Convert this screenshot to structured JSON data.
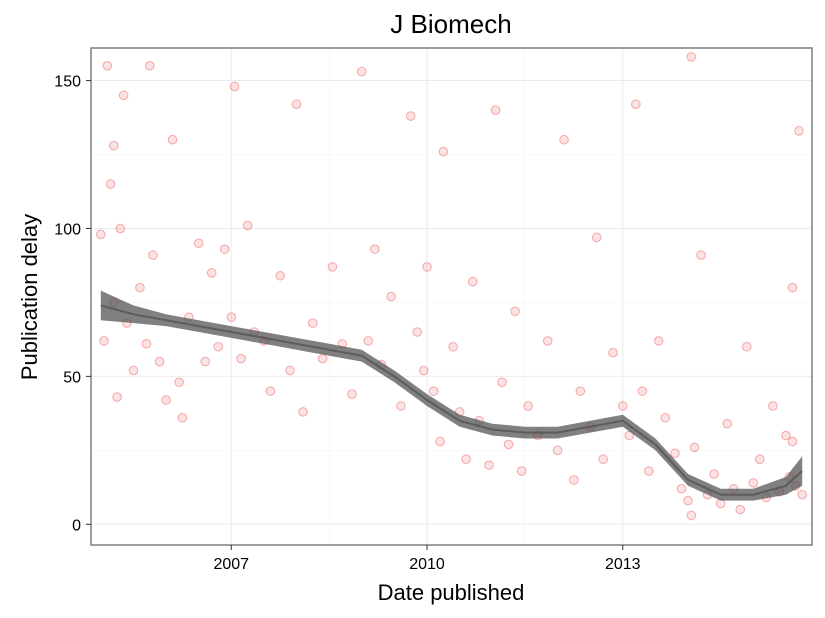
{
  "chart_data": {
    "type": "scatter",
    "title": "J Biomech",
    "xlabel": "Date published",
    "ylabel": "Publication delay",
    "xlim": [
      2004.85,
      2015.9
    ],
    "ylim": [
      -7,
      161
    ],
    "x_ticks": [
      2007,
      2010,
      2013
    ],
    "x_tick_labels": [
      "2007",
      "2010",
      "2013"
    ],
    "y_ticks": [
      0,
      50,
      100,
      150
    ],
    "y_tick_labels": [
      "0",
      "50",
      "100",
      "150"
    ],
    "grid": true,
    "legend": "none",
    "point_color": "#e41a1c",
    "point_opacity": 0.12,
    "smooth_color": "#555555",
    "series": [
      {
        "values": [
          [
            2005.0,
            98
          ],
          [
            2005.05,
            62
          ],
          [
            2005.1,
            155
          ],
          [
            2005.15,
            115
          ],
          [
            2005.2,
            75
          ],
          [
            2005.25,
            43
          ],
          [
            2005.3,
            100
          ],
          [
            2005.4,
            68
          ],
          [
            2005.5,
            52
          ],
          [
            2005.6,
            80
          ],
          [
            2005.7,
            61
          ],
          [
            2005.75,
            155
          ],
          [
            2005.8,
            91
          ],
          [
            2005.9,
            55
          ],
          [
            2006.0,
            42
          ],
          [
            2006.1,
            130
          ],
          [
            2006.2,
            48
          ],
          [
            2006.25,
            36
          ],
          [
            2006.35,
            70
          ],
          [
            2006.5,
            95
          ],
          [
            2006.6,
            55
          ],
          [
            2006.7,
            85
          ],
          [
            2006.8,
            60
          ],
          [
            2006.9,
            93
          ],
          [
            2007.0,
            70
          ],
          [
            2007.05,
            148
          ],
          [
            2007.15,
            56
          ],
          [
            2007.25,
            101
          ],
          [
            2007.35,
            65
          ],
          [
            2007.5,
            62
          ],
          [
            2007.6,
            45
          ],
          [
            2007.75,
            84
          ],
          [
            2007.9,
            52
          ],
          [
            2008.0,
            142
          ],
          [
            2008.1,
            38
          ],
          [
            2008.25,
            68
          ],
          [
            2008.4,
            56
          ],
          [
            2008.55,
            87
          ],
          [
            2008.7,
            61
          ],
          [
            2008.85,
            44
          ],
          [
            2009.0,
            153
          ],
          [
            2009.1,
            62
          ],
          [
            2009.2,
            93
          ],
          [
            2009.3,
            54
          ],
          [
            2009.45,
            77
          ],
          [
            2009.6,
            40
          ],
          [
            2009.75,
            138
          ],
          [
            2009.85,
            65
          ],
          [
            2009.95,
            52
          ],
          [
            2010.0,
            87
          ],
          [
            2010.1,
            45
          ],
          [
            2010.2,
            28
          ],
          [
            2010.25,
            126
          ],
          [
            2010.4,
            60
          ],
          [
            2010.5,
            38
          ],
          [
            2010.6,
            22
          ],
          [
            2010.7,
            82
          ],
          [
            2010.8,
            35
          ],
          [
            2010.95,
            20
          ],
          [
            2011.05,
            140
          ],
          [
            2011.15,
            48
          ],
          [
            2011.25,
            27
          ],
          [
            2011.35,
            72
          ],
          [
            2011.45,
            18
          ],
          [
            2011.55,
            40
          ],
          [
            2011.7,
            30
          ],
          [
            2011.85,
            62
          ],
          [
            2012.0,
            25
          ],
          [
            2012.1,
            130
          ],
          [
            2012.25,
            15
          ],
          [
            2012.35,
            45
          ],
          [
            2012.5,
            33
          ],
          [
            2012.6,
            97
          ],
          [
            2012.7,
            22
          ],
          [
            2012.85,
            58
          ],
          [
            2013.0,
            40
          ],
          [
            2013.1,
            30
          ],
          [
            2013.2,
            142
          ],
          [
            2013.3,
            45
          ],
          [
            2013.4,
            18
          ],
          [
            2013.55,
            62
          ],
          [
            2013.65,
            36
          ],
          [
            2013.8,
            24
          ],
          [
            2013.9,
            12
          ],
          [
            2014.0,
            8
          ],
          [
            2014.05,
            3
          ],
          [
            2014.1,
            26
          ],
          [
            2014.2,
            91
          ],
          [
            2014.3,
            10
          ],
          [
            2014.4,
            17
          ],
          [
            2014.5,
            7
          ],
          [
            2014.6,
            34
          ],
          [
            2014.7,
            12
          ],
          [
            2014.8,
            5
          ],
          [
            2014.9,
            60
          ],
          [
            2015.0,
            14
          ],
          [
            2015.1,
            22
          ],
          [
            2015.2,
            9
          ],
          [
            2015.3,
            40
          ],
          [
            2015.4,
            11
          ],
          [
            2015.5,
            30
          ],
          [
            2015.55,
            16
          ],
          [
            2015.6,
            80
          ],
          [
            2015.65,
            13
          ],
          [
            2015.7,
            133
          ],
          [
            2015.75,
            10
          ],
          [
            2015.6,
            28
          ],
          [
            2014.05,
            158
          ],
          [
            2005.35,
            145
          ],
          [
            2005.2,
            128
          ]
        ]
      }
    ],
    "smooth": {
      "x": [
        2005.0,
        2005.5,
        2006.0,
        2006.5,
        2007.0,
        2007.5,
        2008.0,
        2008.5,
        2009.0,
        2009.5,
        2010.0,
        2010.5,
        2011.0,
        2011.5,
        2012.0,
        2012.5,
        2013.0,
        2013.5,
        2014.0,
        2014.5,
        2015.0,
        2015.5,
        2015.75
      ],
      "y": [
        74,
        71,
        69,
        67,
        65,
        63,
        61,
        59,
        57,
        50,
        42,
        35,
        32,
        31,
        31,
        33,
        35,
        27,
        15,
        10,
        10,
        13,
        18
      ],
      "band": [
        5,
        3,
        2,
        2,
        2,
        2,
        2,
        2,
        2,
        2,
        2,
        2,
        2,
        2,
        2,
        2,
        2,
        2,
        2,
        2,
        2,
        3,
        5
      ]
    }
  }
}
